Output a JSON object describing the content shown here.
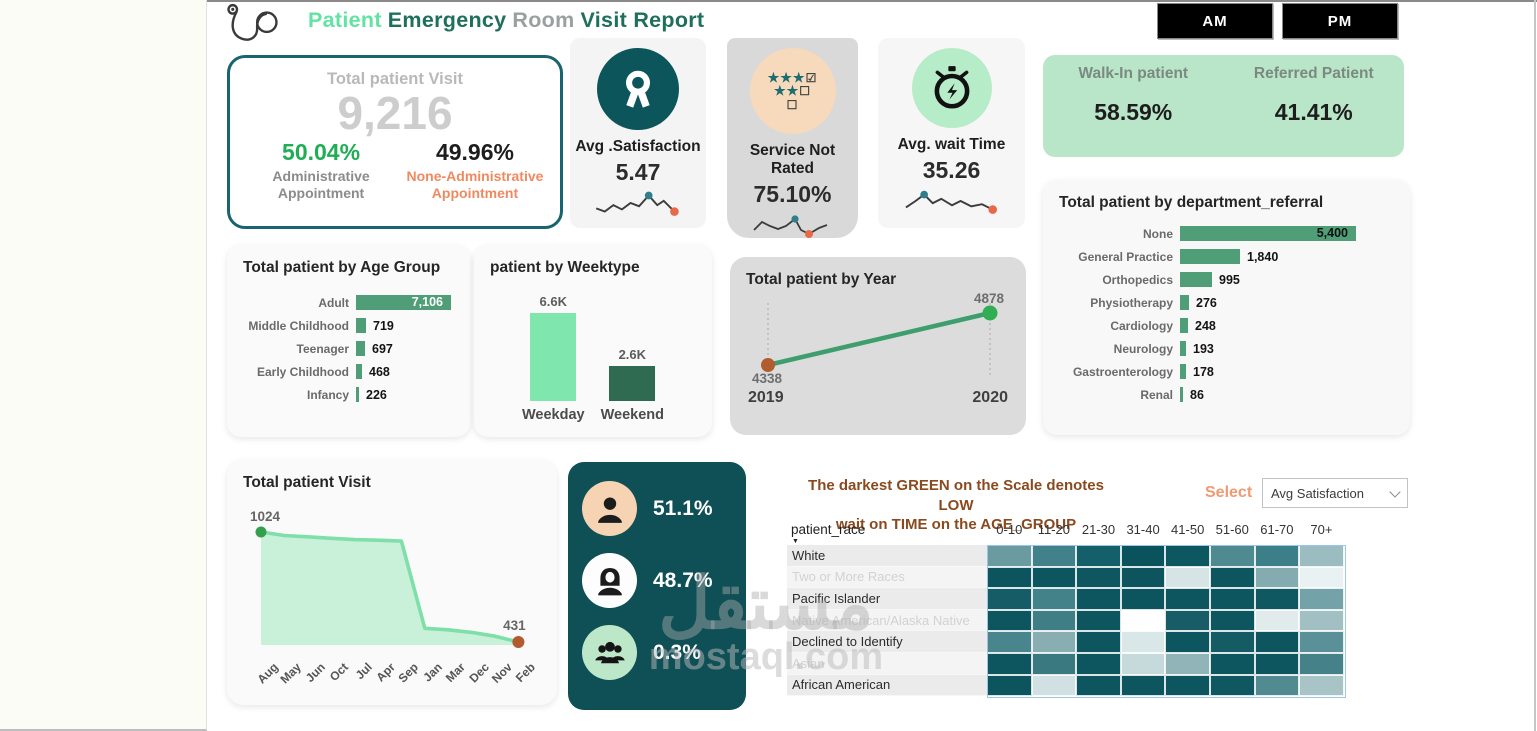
{
  "header": {
    "title_part1": "Patient",
    "title_part2": "Emergency",
    "title_part3": "Room",
    "title_part4": "Visit Report",
    "am_label": "AM",
    "pm_label": "PM"
  },
  "kpi_total": {
    "title": "Total patient Visit",
    "value": "9,216",
    "left_pct": "50.04%",
    "left_label": "Administrative Appointment",
    "right_pct": "49.96%",
    "right_label": "None-Administrative Appointment"
  },
  "kpi_satisfaction": {
    "label": "Avg .Satisfaction",
    "value": "5.47"
  },
  "kpi_not_rated": {
    "label": "Service Not Rated",
    "value": "75.10%",
    "icon_row1_stars": "★★★",
    "icon_row1_box": "☑",
    "icon_row2_stars": "★★",
    "icon_row2_box": "☐",
    "icon_row3_box": "☐"
  },
  "kpi_wait": {
    "label": "Avg. wait Time",
    "value": "35.26"
  },
  "walkin": {
    "left_label": "Walk-In patient",
    "left_value": "58.59%",
    "right_label": "Referred Patient",
    "right_value": "41.41%"
  },
  "gender": {
    "male_pct": "51.1%",
    "female_pct": "48.7%",
    "other_pct": "0.3%"
  },
  "titles": {
    "age": "Total patient by Age Group",
    "weektype": "patient by Weektype",
    "year": "Total patient by Year",
    "department": "Total patient by department_referral",
    "visit": "Total patient Visit"
  },
  "heatmap_panel": {
    "note_line1": "The darkest GREEN on the Scale denotes LOW",
    "note_line2": "wait on TIME on the AGE_GROUP",
    "select_label": "Select",
    "select_value": "Avg Satisfaction",
    "row_header": "patient_race"
  },
  "watermark": {
    "arabic": "مستقل",
    "latin": "mostaql.com"
  },
  "colors": {
    "bar_green": "#4f9e77",
    "mint": "#7fe6ae",
    "dark_green": "#2e6b50",
    "teal_dark": "#0f4f56",
    "accent_orange": "#ef8a60",
    "brown_dot": "#b15b2e",
    "green_dot": "#2fae52"
  },
  "chart_data": [
    {
      "id": "age_group",
      "type": "bar",
      "orientation": "horizontal",
      "title": "Total patient by Age Group",
      "categories": [
        "Adult",
        "Middle Childhood",
        "Teenager",
        "Early Childhood",
        "Infancy"
      ],
      "values": [
        7106,
        719,
        697,
        468,
        226
      ],
      "value_labels": [
        "7,106",
        "719",
        "697",
        "468",
        "226"
      ],
      "bar_color": "#4f9e77"
    },
    {
      "id": "weektype",
      "type": "bar",
      "orientation": "vertical",
      "title": "patient by Weektype",
      "categories": [
        "Weekday",
        "Weekend"
      ],
      "values": [
        6600,
        2600
      ],
      "value_labels": [
        "6.6K",
        "2.6K"
      ],
      "bar_colors": [
        "#7fe6ae",
        "#2e6b50"
      ]
    },
    {
      "id": "year",
      "type": "line",
      "title": "Total patient by Year",
      "x": [
        2019,
        2020
      ],
      "y": [
        4338,
        4878
      ],
      "line_color": "#3f9e6e",
      "point_colors": [
        "#b15b2e",
        "#2fae52"
      ]
    },
    {
      "id": "department",
      "type": "bar",
      "orientation": "horizontal",
      "title": "Total patient by department_referral",
      "categories": [
        "None",
        "General Practice",
        "Orthopedics",
        "Physiotherapy",
        "Cardiology",
        "Neurology",
        "Gastroenterology",
        "Renal"
      ],
      "values": [
        5400,
        1840,
        995,
        276,
        248,
        193,
        178,
        86
      ],
      "value_labels": [
        "5,400",
        "1,840",
        "995",
        "276",
        "248",
        "193",
        "178",
        "86"
      ],
      "bar_color": "#4f9e77"
    },
    {
      "id": "monthly_visits",
      "type": "area",
      "title": "Total patient Visit",
      "categories": [
        "Aug",
        "May",
        "Jun",
        "Oct",
        "Jul",
        "Apr",
        "Sep",
        "Jan",
        "Mar",
        "Dec",
        "Nov",
        "Feb"
      ],
      "values": [
        1024,
        1005,
        998,
        990,
        983,
        980,
        975,
        505,
        497,
        483,
        462,
        431
      ],
      "note": "only endpoints 1024 and 431 are labeled; intermediate values estimated from line shape",
      "endpoint_labels": [
        "1024",
        "431"
      ],
      "line_color": "#7fdfa8",
      "fill_color": "#c9f0d9",
      "point_colors": [
        "#35a04b",
        "#b15b2e"
      ]
    },
    {
      "id": "race_age_heatmap",
      "type": "heatmap",
      "note": "cell numeric values not displayed; darker green = lower wait time / selected measure Avg Satisfaction",
      "rows": [
        {
          "label": "White",
          "faint": false
        },
        {
          "label": "Two or More Races",
          "faint": true
        },
        {
          "label": "Pacific Islander",
          "faint": false
        },
        {
          "label": "Native American/Alaska Native",
          "faint": true
        },
        {
          "label": "Declined to Identify",
          "faint": false
        },
        {
          "label": "Asian",
          "faint": true
        },
        {
          "label": "African American",
          "faint": false
        }
      ],
      "columns": [
        "0-10",
        "11-20",
        "21-30",
        "31-40",
        "41-50",
        "51-60",
        "61-70",
        "70+"
      ],
      "cell_colors": [
        [
          "#6a9ba0",
          "#41818a",
          "#14606a",
          "#0a525c",
          "#0d5761",
          "#4f8a91",
          "#3d7f88",
          "#9bbcc0"
        ],
        [
          "#0c545e",
          "#0d555f",
          "#0e5660",
          "#0d545e",
          "#d7e4e6",
          "#0d555f",
          "#83abb0",
          "#eaf1f2"
        ],
        [
          "#155c66",
          "#44828a",
          "#0d555f",
          "#0c545e",
          "#0d555f",
          "#0e565f",
          "#0f5761",
          "#73a3a9"
        ],
        [
          "#0d555f",
          "#407e85",
          "#0e565f",
          "#ffffff",
          "#175c66",
          "#0d555f",
          "#e1ebec",
          "#a2bfc3"
        ],
        [
          "#49858d",
          "#88aeb2",
          "#0d555f",
          "#dae7e8",
          "#0e565f",
          "#155b64",
          "#0d555f",
          "#5a9097"
        ],
        [
          "#0d555f",
          "#3b7980",
          "#0e565f",
          "#c6dadc",
          "#91b4b8",
          "#0d555f",
          "#0d555f",
          "#448188"
        ],
        [
          "#0c545e",
          "#d1e1e3",
          "#0d555f",
          "#0d555f",
          "#0e565f",
          "#0f5761",
          "#518a91",
          "#a8c4c7"
        ]
      ]
    }
  ]
}
